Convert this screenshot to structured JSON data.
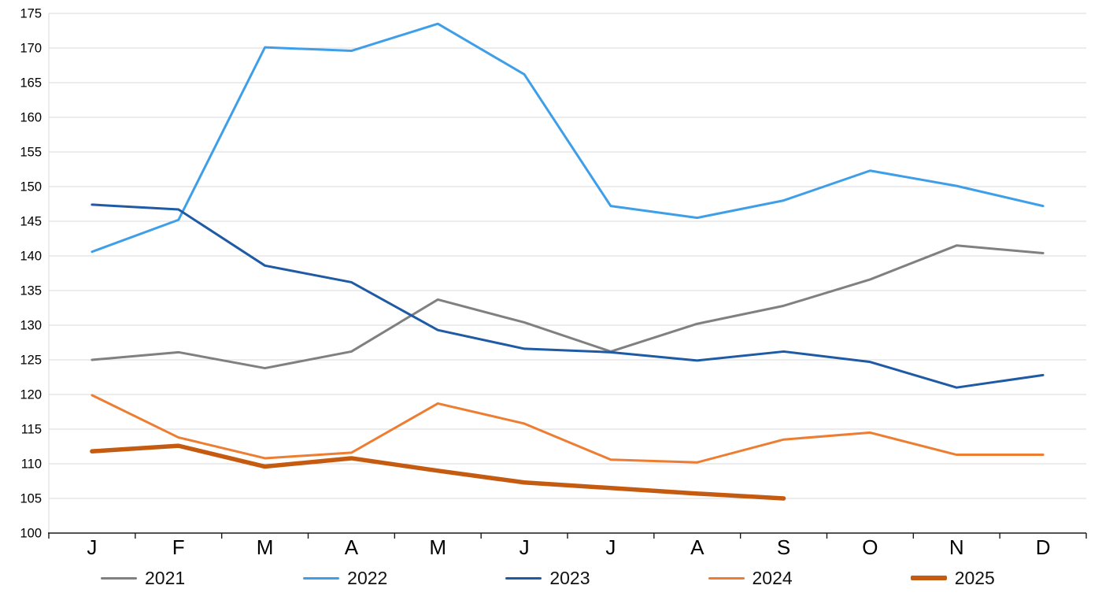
{
  "chart_data": {
    "type": "line",
    "title": "",
    "xlabel": "",
    "ylabel": "",
    "x_categories": [
      "J",
      "F",
      "M",
      "A",
      "M",
      "J",
      "J",
      "A",
      "S",
      "O",
      "N",
      "D"
    ],
    "ylim": [
      100,
      175
    ],
    "ytick_step": 5,
    "grid": "horizontal",
    "grid_color": "#d9d9d9",
    "axis_color": "#1a1a1a",
    "legend_position": "bottom",
    "series": [
      {
        "name": "2021",
        "color": "#808080",
        "width": 3,
        "values": [
          125.0,
          126.1,
          123.8,
          126.2,
          133.7,
          130.4,
          126.2,
          130.2,
          132.8,
          136.6,
          141.5,
          140.4
        ]
      },
      {
        "name": "2022",
        "color": "#3E9FE8",
        "width": 3,
        "values": [
          140.6,
          145.2,
          170.1,
          169.6,
          173.5,
          166.2,
          147.2,
          145.5,
          148.0,
          152.3,
          150.1,
          147.2
        ]
      },
      {
        "name": "2023",
        "color": "#1F5AA5",
        "width": 3,
        "values": [
          147.4,
          146.7,
          138.6,
          136.2,
          129.3,
          126.6,
          126.1,
          124.9,
          126.2,
          124.7,
          121.0,
          122.8
        ]
      },
      {
        "name": "2024",
        "color": "#ED7D31",
        "width": 3,
        "values": [
          119.9,
          113.8,
          110.8,
          111.6,
          118.7,
          115.8,
          110.6,
          110.2,
          113.5,
          114.5,
          111.3,
          111.3
        ]
      },
      {
        "name": "2025",
        "color": "#C55A11",
        "width": 5.5,
        "values": [
          111.8,
          112.6,
          109.6,
          110.8,
          109.0,
          107.3,
          106.5,
          105.7,
          105.0
        ]
      }
    ]
  }
}
